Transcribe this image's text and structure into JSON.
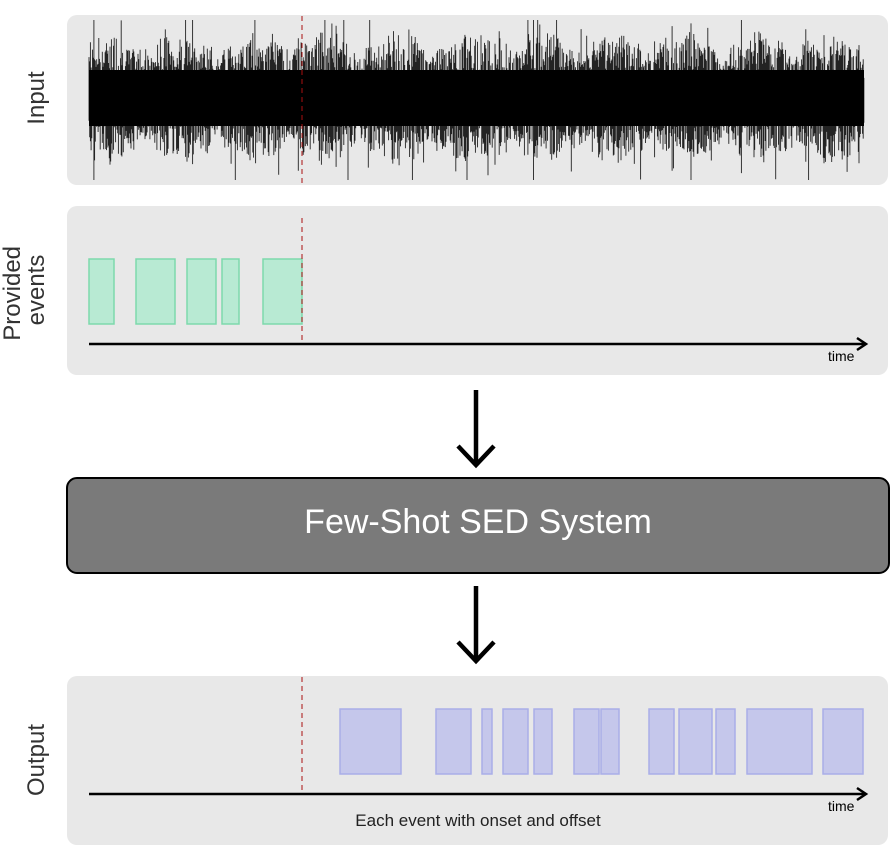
{
  "input_panel": {
    "label": "Input"
  },
  "provided_panel": {
    "label_line1": "Provided",
    "label_line2": "events",
    "time_label": "time",
    "event_color": "#b8ead3",
    "event_border": "#7dd9ac"
  },
  "system": {
    "title": "Few-Shot SED System",
    "fill": "#7a7a7a"
  },
  "output_panel": {
    "label": "Output",
    "time_label": "time",
    "caption": "Each event with onset and offset",
    "event_color": "#c5c7eb",
    "event_border": "#a9aee8"
  },
  "colors": {
    "panel_bg": "#e8e8e8",
    "cutoff_line": "#aa1111",
    "waveform": "#000000"
  }
}
